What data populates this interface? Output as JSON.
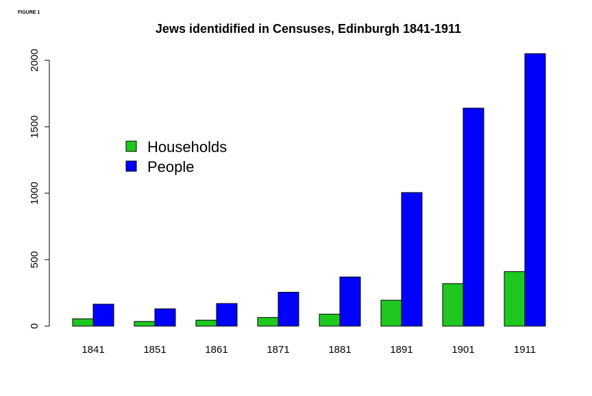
{
  "figure_label": "FIGURE 1",
  "chart_data": {
    "type": "bar",
    "title": "Jews identidified in Censuses, Edinburgh 1841-1911",
    "xlabel": "",
    "ylabel": "",
    "categories": [
      "1841",
      "1851",
      "1861",
      "1871",
      "1881",
      "1891",
      "1901",
      "1911"
    ],
    "series": [
      {
        "name": "Households",
        "color": "#1ec81e",
        "values": [
          55,
          35,
          45,
          65,
          90,
          195,
          320,
          410
        ]
      },
      {
        "name": "People",
        "color": "#0000ff",
        "values": [
          165,
          130,
          170,
          255,
          370,
          1005,
          1640,
          2050
        ]
      }
    ],
    "ylim": [
      0,
      2000
    ],
    "yticks": [
      0,
      500,
      1000,
      1500,
      2000
    ],
    "grid": false,
    "legend_position": "upper-left-center"
  }
}
